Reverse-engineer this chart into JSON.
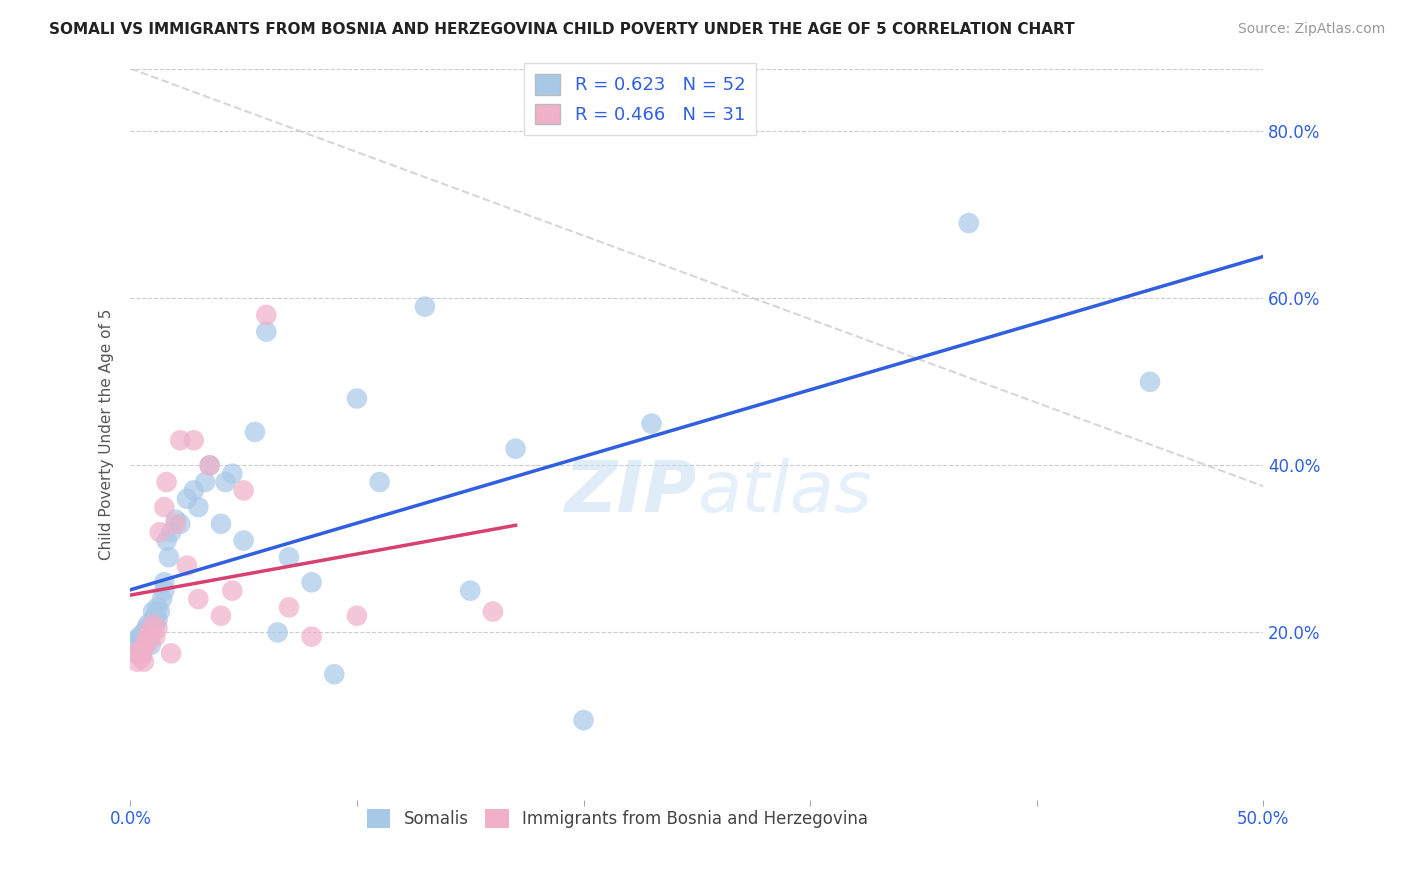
{
  "title": "SOMALI VS IMMIGRANTS FROM BOSNIA AND HERZEGOVINA CHILD POVERTY UNDER THE AGE OF 5 CORRELATION CHART",
  "source": "Source: ZipAtlas.com",
  "ylabel": "Child Poverty Under the Age of 5",
  "xlim": [
    0.0,
    0.5
  ],
  "ylim": [
    0.0,
    0.875
  ],
  "somali_R": 0.623,
  "somali_N": 52,
  "bosnia_R": 0.466,
  "bosnia_N": 31,
  "somali_color": "#a8c8e8",
  "bosnia_color": "#f0b0c8",
  "somali_line_color": "#3060e0",
  "bosnia_line_color": "#d84070",
  "diagonal_color": "#cccccc",
  "legend_text_color": "#3060e0",
  "watermark_color": "#d8eaf8",
  "background_color": "#ffffff",
  "grid_color": "#cccccc",
  "somali_x": [
    0.002,
    0.003,
    0.004,
    0.005,
    0.005,
    0.006,
    0.006,
    0.007,
    0.007,
    0.008,
    0.008,
    0.009,
    0.009,
    0.01,
    0.01,
    0.011,
    0.011,
    0.012,
    0.012,
    0.013,
    0.014,
    0.015,
    0.015,
    0.016,
    0.017,
    0.018,
    0.02,
    0.022,
    0.025,
    0.028,
    0.03,
    0.033,
    0.035,
    0.04,
    0.042,
    0.045,
    0.05,
    0.055,
    0.06,
    0.065,
    0.07,
    0.08,
    0.09,
    0.1,
    0.11,
    0.13,
    0.15,
    0.17,
    0.2,
    0.23,
    0.37,
    0.45
  ],
  "somali_y": [
    0.19,
    0.185,
    0.195,
    0.175,
    0.195,
    0.185,
    0.2,
    0.19,
    0.205,
    0.195,
    0.21,
    0.185,
    0.2,
    0.215,
    0.225,
    0.21,
    0.22,
    0.215,
    0.23,
    0.225,
    0.24,
    0.25,
    0.26,
    0.31,
    0.29,
    0.32,
    0.335,
    0.33,
    0.36,
    0.37,
    0.35,
    0.38,
    0.4,
    0.33,
    0.38,
    0.39,
    0.31,
    0.44,
    0.56,
    0.2,
    0.29,
    0.26,
    0.15,
    0.48,
    0.38,
    0.59,
    0.25,
    0.42,
    0.095,
    0.45,
    0.69,
    0.5
  ],
  "bosnia_x": [
    0.002,
    0.003,
    0.004,
    0.005,
    0.005,
    0.006,
    0.007,
    0.007,
    0.008,
    0.009,
    0.01,
    0.011,
    0.012,
    0.013,
    0.015,
    0.016,
    0.018,
    0.02,
    0.022,
    0.025,
    0.028,
    0.03,
    0.035,
    0.04,
    0.045,
    0.05,
    0.06,
    0.07,
    0.08,
    0.1,
    0.16
  ],
  "bosnia_y": [
    0.175,
    0.165,
    0.175,
    0.17,
    0.18,
    0.165,
    0.185,
    0.19,
    0.2,
    0.195,
    0.21,
    0.195,
    0.205,
    0.32,
    0.35,
    0.38,
    0.175,
    0.33,
    0.43,
    0.28,
    0.43,
    0.24,
    0.4,
    0.22,
    0.25,
    0.37,
    0.58,
    0.23,
    0.195,
    0.22,
    0.225
  ]
}
